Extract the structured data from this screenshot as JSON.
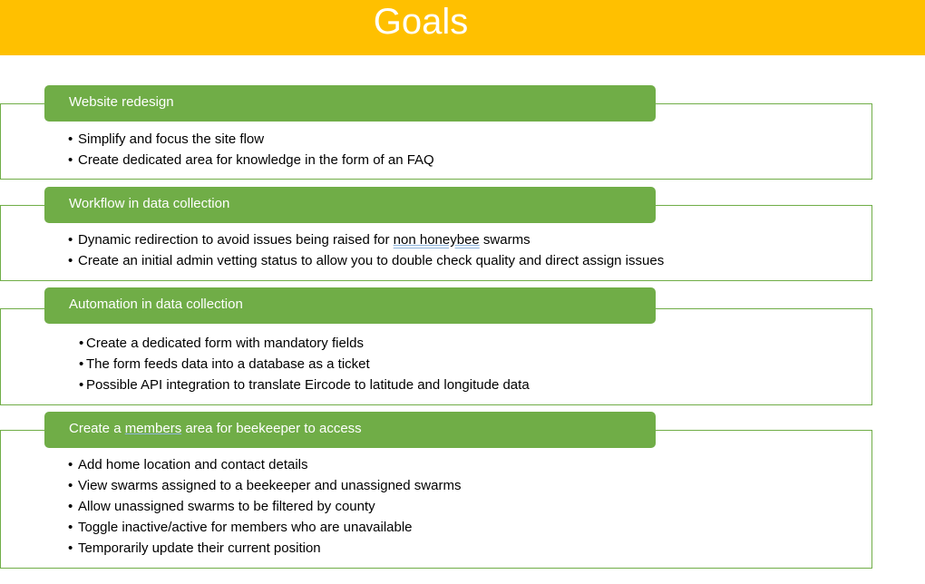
{
  "title": "Goals",
  "bullet": "•",
  "sections": [
    {
      "heading": "Website redesign",
      "items": [
        "Simplify and focus the site flow",
        "Create dedicated area for knowledge in the form of an FAQ"
      ]
    },
    {
      "heading": "Workflow in data collection",
      "items": [
        {
          "before": "Dynamic redirection to avoid issues being raised for ",
          "marked": "non honeybee",
          "after": " swarms"
        },
        "Create an initial admin vetting status to allow you to double check quality and direct assign issues"
      ]
    },
    {
      "heading": "Automation in data collection",
      "items": [
        "Create a dedicated form with mandatory fields",
        "The form feeds data into a database as a ticket",
        "Possible API integration to translate Eircode to latitude and longitude data"
      ]
    },
    {
      "heading_before": "Create a ",
      "heading_marked": "members",
      "heading_after": " area for beekeeper to access",
      "items": [
        "Add home location and contact details",
        "View swarms assigned to a beekeeper and unassigned swarms",
        "Allow unassigned swarms to be filtered by county",
        "Toggle inactive/active for members who are unavailable",
        "Temporarily update their current position"
      ]
    }
  ],
  "colors": {
    "title_bar": "#ffc000",
    "header": "#70ad47",
    "border": "#70ad47"
  }
}
